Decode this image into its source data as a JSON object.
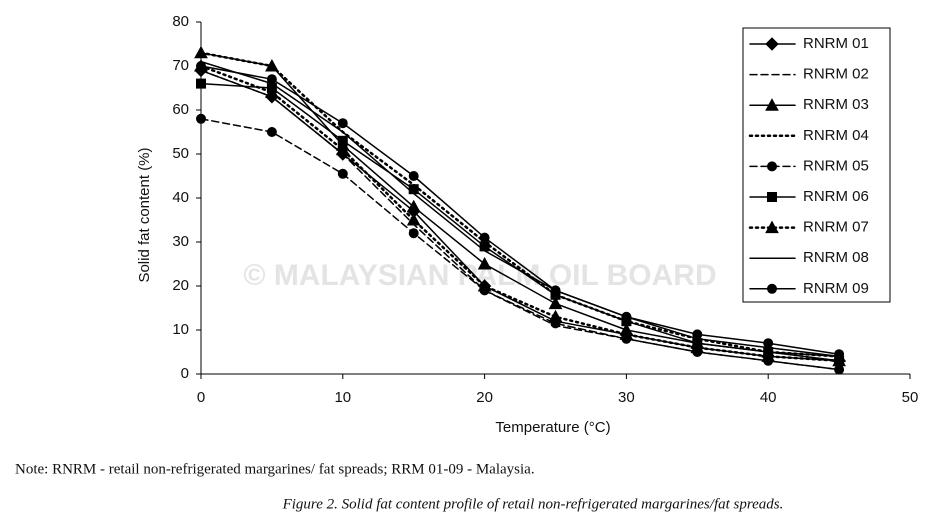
{
  "chart_data": {
    "type": "line",
    "x_label": "Temperature  (°C)",
    "y_label": "Solid fat content (%)",
    "watermark": "© MALAYSIAN PALM OIL BOARD",
    "x": [
      0,
      5,
      10,
      15,
      20,
      25,
      30,
      35,
      40,
      45
    ],
    "xlim": [
      0,
      50
    ],
    "xticks": [
      0,
      10,
      20,
      30,
      40,
      50
    ],
    "ylim": [
      0,
      80
    ],
    "yticks": [
      0,
      10,
      20,
      30,
      40,
      50,
      60,
      70,
      80
    ],
    "legend": "upper right",
    "series": [
      {
        "name": "RNRM 01",
        "color": "#000000",
        "marker": "diamond",
        "dash": "solid",
        "values": [
          69,
          63,
          50,
          37,
          20,
          12,
          9,
          6,
          4,
          3
        ]
      },
      {
        "name": "RNRM 02",
        "color": "#000000",
        "marker": "none",
        "dash": "dashed",
        "values": [
          69,
          63,
          50,
          34,
          19,
          11,
          8,
          5,
          3,
          1
        ]
      },
      {
        "name": "RNRM 03",
        "color": "#000000",
        "marker": "triangle",
        "dash": "solid",
        "values": [
          73,
          70,
          52,
          38,
          25,
          16,
          10,
          7,
          5,
          4
        ]
      },
      {
        "name": "RNRM 04",
        "color": "#000000",
        "marker": "none",
        "dash": "dotted",
        "values": [
          73,
          70,
          55,
          43,
          30,
          18,
          12,
          8,
          5,
          4
        ]
      },
      {
        "name": "RNRM 05",
        "color": "#000000",
        "marker": "circle",
        "dash": "dashed",
        "values": [
          58,
          55,
          45.5,
          32,
          19,
          11.5,
          8,
          5,
          3,
          1
        ]
      },
      {
        "name": "RNRM 06",
        "color": "#000000",
        "marker": "square",
        "dash": "solid",
        "values": [
          66,
          65,
          53,
          42,
          29,
          18,
          12,
          7,
          5,
          3
        ]
      },
      {
        "name": "RNRM 07",
        "color": "#000000",
        "marker": "triangle",
        "dash": "dotted",
        "values": [
          70,
          64,
          51,
          35,
          20,
          13,
          9,
          6,
          4,
          3
        ]
      },
      {
        "name": "RNRM 08",
        "color": "#000000",
        "marker": "none",
        "dash": "solid",
        "values": [
          71,
          66,
          55,
          41,
          28,
          19,
          13,
          8,
          6,
          4
        ]
      },
      {
        "name": "RNRM 09",
        "color": "#000000",
        "marker": "circle",
        "dash": "solid",
        "values": [
          70,
          67,
          57,
          45,
          31,
          19,
          13,
          9,
          7,
          4.5
        ]
      }
    ]
  },
  "note": "Note: RNRM - retail non-refrigerated margarines/ fat spreads; RRM 01-09 - Malaysia.",
  "caption": "Figure 2. Solid fat content profile of retail non-refrigerated margarines/fat spreads."
}
